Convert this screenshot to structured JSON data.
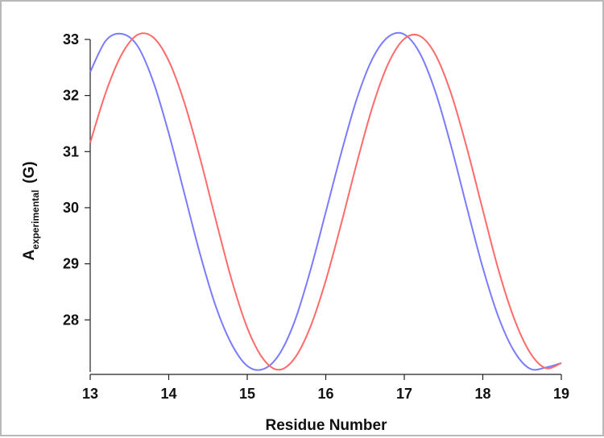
{
  "chart_data": {
    "type": "line",
    "title": "",
    "xlabel": "Residue Number",
    "ylabel": {
      "main": "A",
      "subscript": "experimental",
      "unit": "(G)"
    },
    "xlim": [
      13,
      19
    ],
    "ylim": [
      27.1,
      33.1
    ],
    "x_ticks": [
      "13",
      "14",
      "15",
      "16",
      "17",
      "18",
      "19"
    ],
    "y_ticks": [
      "28",
      "29",
      "30",
      "31",
      "32",
      "33"
    ],
    "grid": false,
    "legend": "none",
    "series": [
      {
        "color": "#7b7bff",
        "x": [
          13,
          13.2,
          13.4,
          13.6,
          13.8,
          14,
          14.2,
          14.4,
          14.6,
          14.8,
          15,
          15.2,
          15.4,
          15.6,
          15.8,
          16,
          16.2,
          16.4,
          16.6,
          16.8,
          17,
          17.2,
          17.4,
          17.6,
          17.8,
          18,
          18.2,
          18.4,
          18.6,
          18.8,
          19
        ],
        "y": [
          32.42,
          32.98,
          33.1,
          32.89,
          32.26,
          31.33,
          30.25,
          29.17,
          28.24,
          27.57,
          27.18,
          27.12,
          27.37,
          27.96,
          28.86,
          29.92,
          30.99,
          31.96,
          32.67,
          33.05,
          33.09,
          32.75,
          32.05,
          31.08,
          29.99,
          28.93,
          28.05,
          27.44,
          27.13,
          27.15,
          27.23
        ]
      },
      {
        "color": "#ff6b6b",
        "x": [
          13,
          13.2,
          13.4,
          13.6,
          13.8,
          14,
          14.2,
          14.4,
          14.6,
          14.8,
          15,
          15.2,
          15.4,
          15.6,
          15.8,
          16,
          16.2,
          16.4,
          16.6,
          16.8,
          17,
          17.2,
          17.4,
          17.6,
          17.8,
          18,
          18.2,
          18.4,
          18.6,
          18.8,
          19
        ],
        "y": [
          31.16,
          32.06,
          32.73,
          33.08,
          33.04,
          32.62,
          31.87,
          30.88,
          29.78,
          28.72,
          27.86,
          27.31,
          27.11,
          27.31,
          27.86,
          28.7,
          29.73,
          30.82,
          31.82,
          32.58,
          33.01,
          33.06,
          32.72,
          32.02,
          31.05,
          29.96,
          28.89,
          28.02,
          27.42,
          27.14,
          27.23
        ]
      }
    ]
  }
}
